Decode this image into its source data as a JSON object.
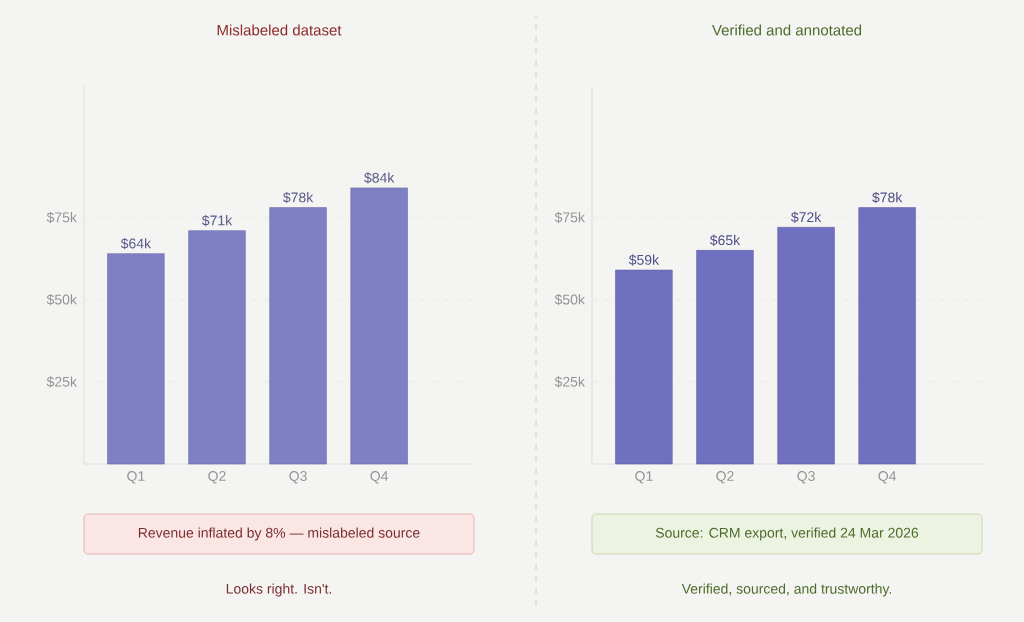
{
  "chart_data": [
    {
      "type": "bar",
      "title": "Mislabeled dataset",
      "categories": [
        "Q1",
        "Q2",
        "Q3",
        "Q4"
      ],
      "values": [
        64000,
        71000,
        78000,
        84000
      ],
      "value_labels": [
        "$64k",
        "$71k",
        "$78k",
        "$84k"
      ],
      "color": "#7f7fc4",
      "ylim": [
        0,
        115000
      ],
      "yticks": [
        {
          "value": 25000,
          "label": "$25k"
        },
        {
          "value": 50000,
          "label": "$50k"
        },
        {
          "value": 75000,
          "label": "$75k"
        }
      ],
      "grid": "y",
      "annotations": [
        "Revenue inflated by 8% — mislabeled source",
        "Looks right. Isn't."
      ]
    },
    {
      "type": "bar",
      "title": "Verified and annotated",
      "categories": [
        "Q1",
        "Q2",
        "Q3",
        "Q4"
      ],
      "values": [
        59000,
        65000,
        72000,
        78000
      ],
      "value_labels": [
        "$59k",
        "$65k",
        "$72k",
        "$78k"
      ],
      "color": "#7070c0",
      "ylim": [
        0,
        115000
      ],
      "yticks": [
        {
          "value": 25000,
          "label": "$25k"
        },
        {
          "value": 50000,
          "label": "$50k"
        },
        {
          "value": 75000,
          "label": "$75k"
        }
      ],
      "grid": "y",
      "annotations": [
        "Source: CRM export, verified 24 Mar 2026",
        "Verified, sourced, and trustworthy."
      ]
    }
  ]
}
